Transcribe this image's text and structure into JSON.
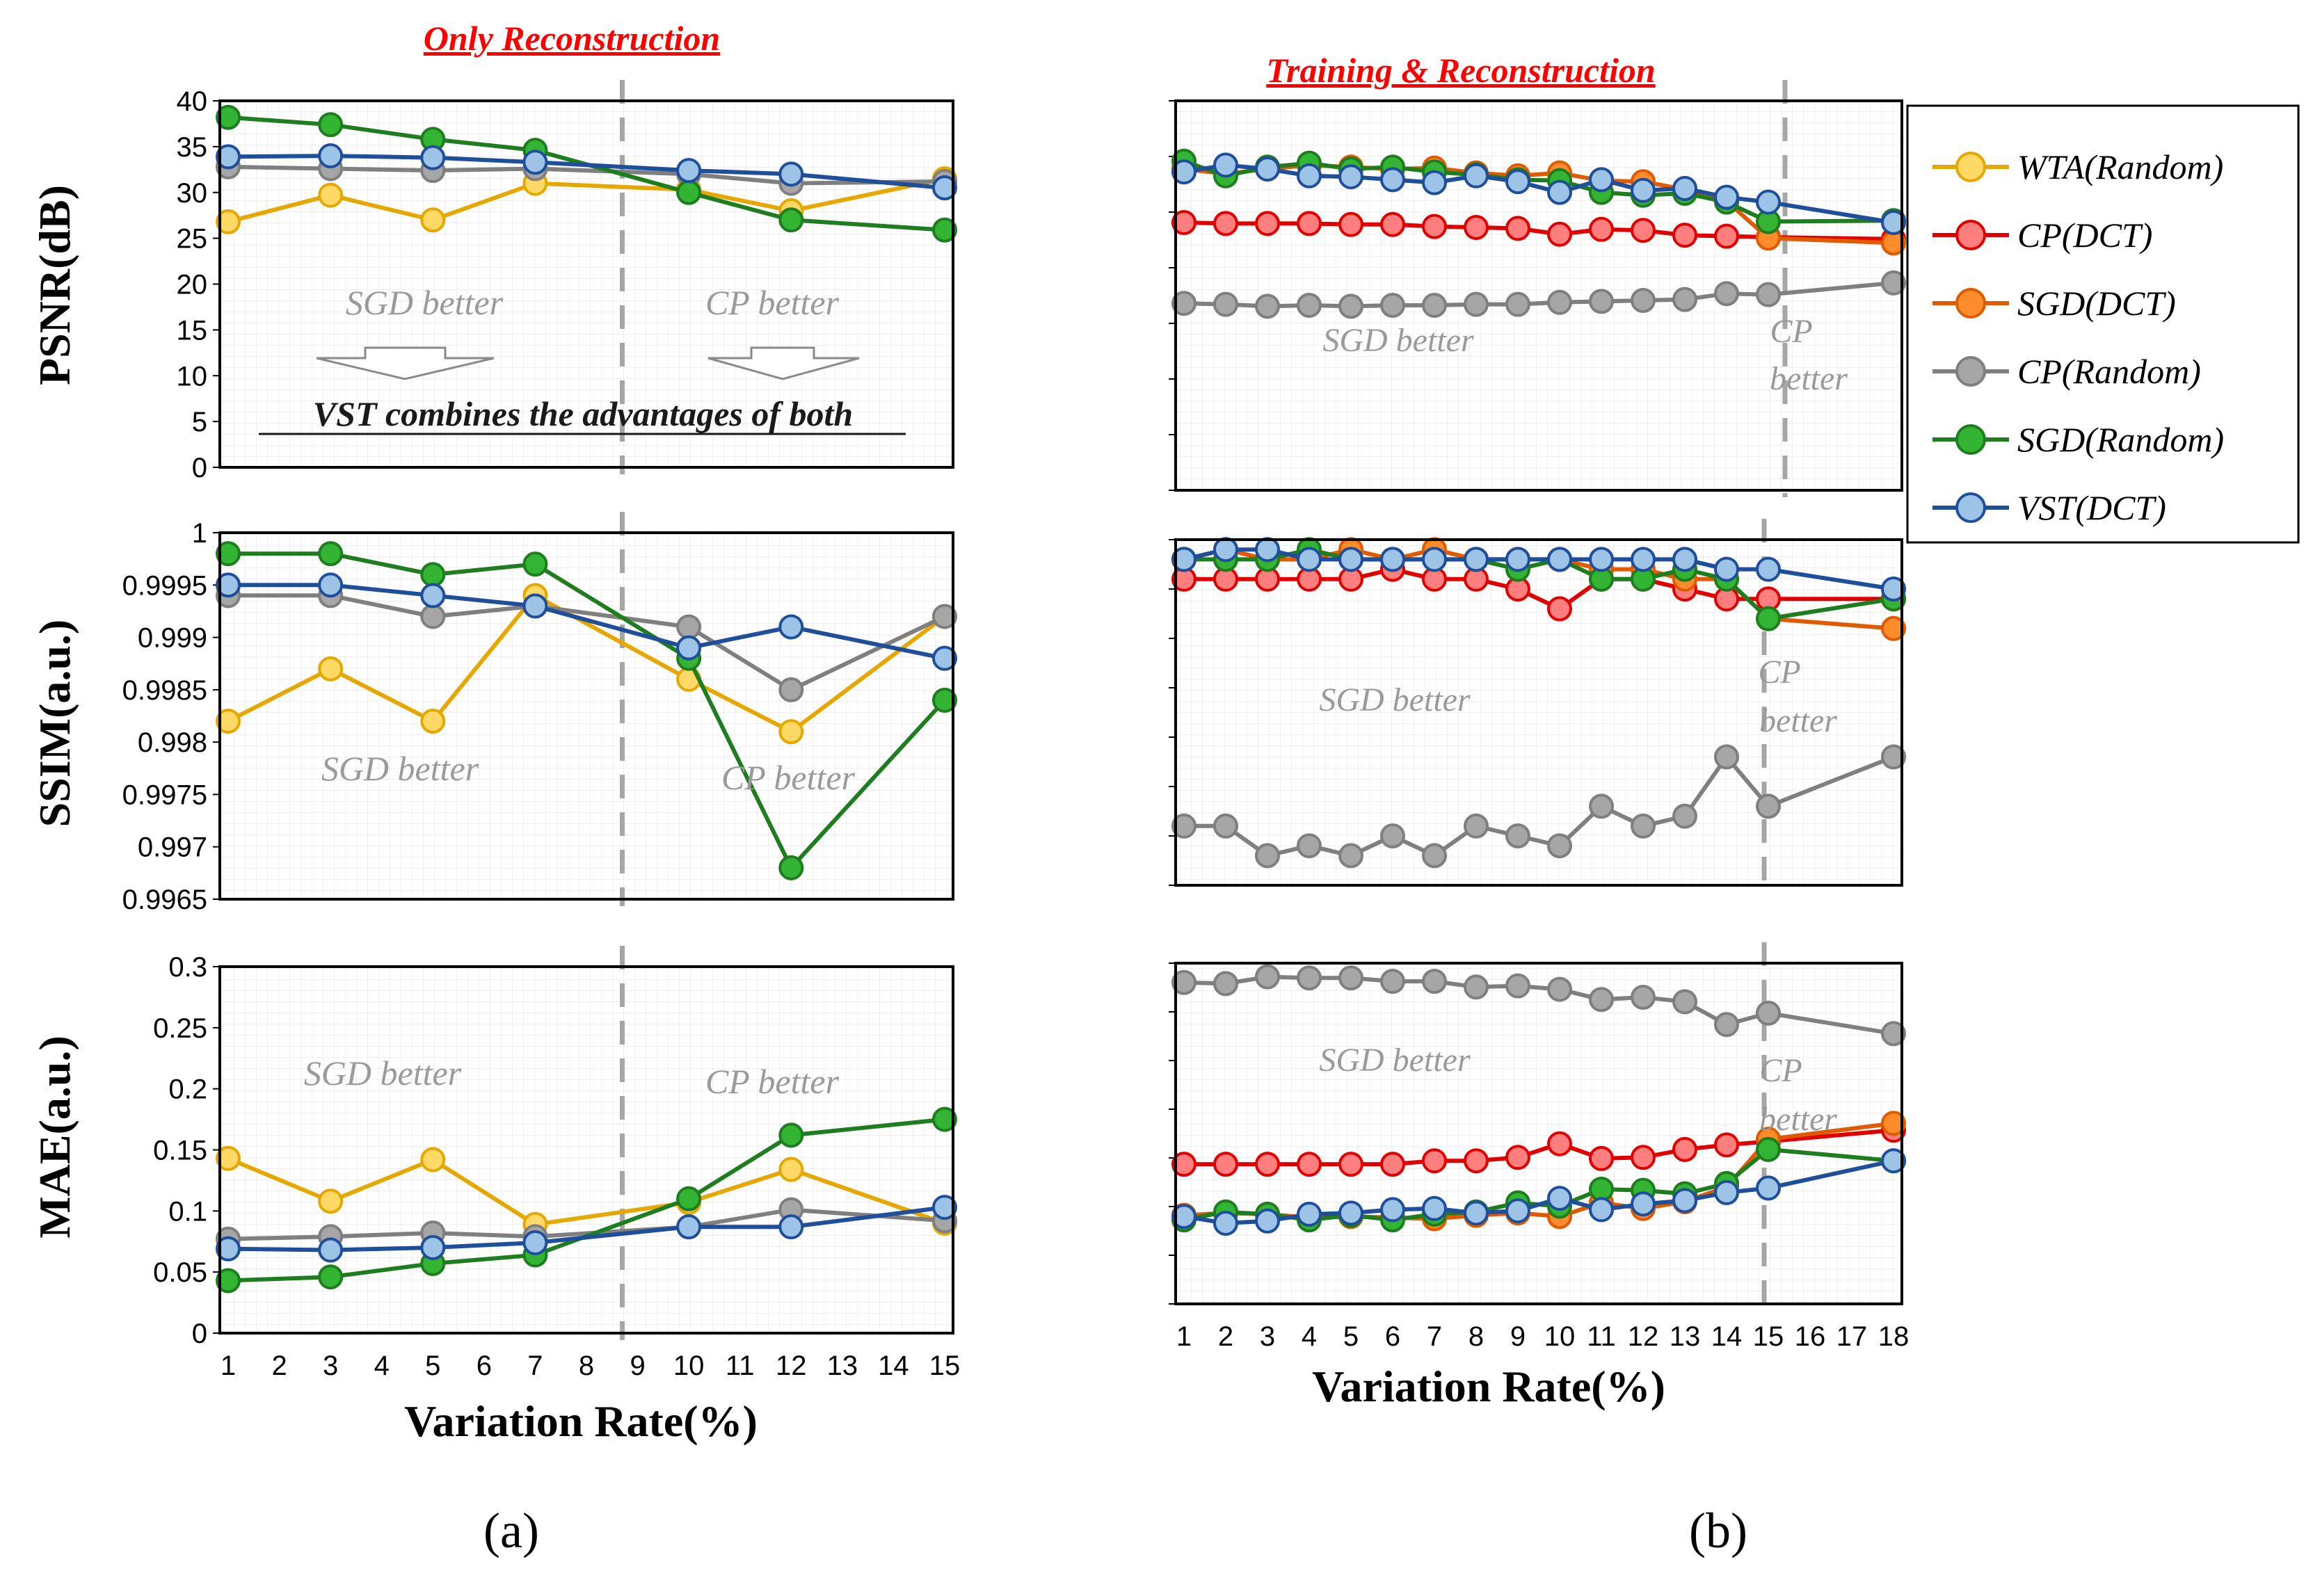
{
  "panel_labels": {
    "a": "(a)",
    "b": "(b)"
  },
  "panel_titles": {
    "a": "Only Reconstruction",
    "b": "Training & Reconstruction"
  },
  "annotations": {
    "sgd_better": "SGD better",
    "cp_better": "CP better",
    "cp": "CP",
    "better": "better",
    "combine": "VST combines the advantages of both"
  },
  "legend": [
    {
      "name": "WTA(Random)",
      "fill": "#ffd966",
      "stroke": "#e6a800"
    },
    {
      "name": "CP(DCT)",
      "fill": "#ff7f7f",
      "stroke": "#e00000"
    },
    {
      "name": "SGD(DCT)",
      "fill": "#ff8c2a",
      "stroke": "#e05a00"
    },
    {
      "name": "CP(Random)",
      "fill": "#a6a6a6",
      "stroke": "#7f7f7f"
    },
    {
      "name": "SGD(Random)",
      "fill": "#33b533",
      "stroke": "#1e7d1e"
    },
    {
      "name": "VST(DCT)",
      "fill": "#9dc3e6",
      "stroke": "#1f4e9a"
    }
  ],
  "chart_data": [
    {
      "id": "a-psnr",
      "type": "line",
      "ylabel": "PSNR(dB)",
      "xlabel": "",
      "categories": [
        "1",
        "3",
        "5",
        "7",
        "10",
        "12",
        "15"
      ],
      "ylim": [
        0,
        40
      ],
      "yticks": [
        "0",
        "5",
        "10",
        "15",
        "20",
        "25",
        "30",
        "35",
        "40"
      ],
      "series": [
        {
          "name": "WTA(Random)",
          "values": [
            26.8,
            29.7,
            27.0,
            31.0,
            30.3,
            28.0,
            31.5
          ]
        },
        {
          "name": "CP(Random)",
          "values": [
            32.8,
            32.6,
            32.4,
            32.6,
            32.0,
            31.0,
            31.2
          ]
        },
        {
          "name": "SGD(Random)",
          "values": [
            38.2,
            37.4,
            35.8,
            34.6,
            30.0,
            27.0,
            25.9
          ]
        },
        {
          "name": "VST(DCT)",
          "values": [
            33.9,
            34.0,
            33.8,
            33.3,
            32.4,
            32.0,
            30.5
          ]
        }
      ]
    },
    {
      "id": "a-ssim",
      "type": "line",
      "ylabel": "SSIM(a.u.)",
      "xlabel": "",
      "categories": [
        "1",
        "3",
        "5",
        "7",
        "10",
        "12",
        "15"
      ],
      "ylim": [
        0.9965,
        1
      ],
      "yticks": [
        "0.9965",
        "0.997",
        "0.9975",
        "0.998",
        "0.9985",
        "0.999",
        "0.9995",
        "1"
      ],
      "series": [
        {
          "name": "WTA(Random)",
          "values": [
            0.9982,
            0.9987,
            0.9982,
            0.9994,
            0.9986,
            0.9981,
            0.9992
          ]
        },
        {
          "name": "CP(Random)",
          "values": [
            0.9994,
            0.9994,
            0.9992,
            0.9993,
            0.9991,
            0.9985,
            0.9992
          ]
        },
        {
          "name": "SGD(Random)",
          "values": [
            0.9998,
            0.9998,
            0.9996,
            0.9997,
            0.9988,
            0.9968,
            0.9984
          ]
        },
        {
          "name": "VST(DCT)",
          "values": [
            0.9995,
            0.9995,
            0.9994,
            0.9993,
            0.9989,
            0.9991,
            0.9988
          ]
        }
      ]
    },
    {
      "id": "a-mae",
      "type": "line",
      "ylabel": "MAE(a.u.)",
      "xlabel": "Variation Rate(%)",
      "categories": [
        "1",
        "2",
        "3",
        "4",
        "5",
        "6",
        "7",
        "8",
        "9",
        "10",
        "11",
        "12",
        "13",
        "14",
        "15"
      ],
      "ylim": [
        0,
        0.3
      ],
      "yticks": [
        "0",
        "0.05",
        "0.1",
        "0.15",
        "0.2",
        "0.25",
        "0.3"
      ],
      "series": [
        {
          "name": "WTA(Random)",
          "x": [
            1,
            3,
            5,
            7,
            10,
            12,
            15
          ],
          "values": [
            0.143,
            0.108,
            0.142,
            0.089,
            0.107,
            0.134,
            0.09
          ]
        },
        {
          "name": "CP(Random)",
          "x": [
            1,
            3,
            5,
            7,
            10,
            12,
            15
          ],
          "values": [
            0.077,
            0.079,
            0.082,
            0.079,
            0.087,
            0.101,
            0.092
          ]
        },
        {
          "name": "SGD(Random)",
          "x": [
            1,
            3,
            5,
            7,
            10,
            12,
            15
          ],
          "values": [
            0.043,
            0.046,
            0.057,
            0.064,
            0.11,
            0.162,
            0.175
          ]
        },
        {
          "name": "VST(DCT)",
          "x": [
            1,
            3,
            5,
            7,
            10,
            12,
            15
          ],
          "values": [
            0.069,
            0.068,
            0.07,
            0.074,
            0.087,
            0.087,
            0.103
          ]
        }
      ]
    },
    {
      "id": "b-psnr",
      "type": "line",
      "ylabel": "",
      "xlabel": "",
      "categories": [
        "1",
        "2",
        "3",
        "4",
        "5",
        "6",
        "7",
        "8",
        "9",
        "10",
        "11",
        "12",
        "13",
        "14",
        "15",
        "16",
        "17",
        "18"
      ],
      "ylim": [
        0,
        40
      ],
      "series": [
        {
          "name": "CP(DCT)",
          "x": [
            1,
            2,
            3,
            4,
            5,
            6,
            7,
            8,
            9,
            10,
            11,
            12,
            13,
            14,
            15,
            18
          ],
          "values": [
            27.5,
            27.4,
            27.4,
            27.4,
            27.3,
            27.3,
            27.1,
            27.0,
            26.9,
            26.3,
            26.8,
            26.7,
            26.2,
            26.1,
            26.0,
            25.8
          ]
        },
        {
          "name": "SGD(DCT)",
          "x": [
            1,
            2,
            3,
            4,
            5,
            6,
            7,
            8,
            9,
            10,
            11,
            12,
            13,
            14,
            15,
            18
          ],
          "values": [
            33.0,
            32.5,
            33.0,
            33.4,
            33.2,
            33.0,
            33.1,
            32.6,
            32.3,
            32.6,
            31.8,
            31.7,
            30.9,
            29.7,
            25.9,
            25.4
          ]
        },
        {
          "name": "CP(Random)",
          "x": [
            1,
            2,
            3,
            4,
            5,
            6,
            7,
            8,
            9,
            10,
            11,
            12,
            13,
            14,
            15,
            18
          ],
          "values": [
            19.2,
            19.1,
            18.9,
            19.0,
            18.9,
            19.0,
            19.0,
            19.1,
            19.1,
            19.3,
            19.4,
            19.5,
            19.6,
            20.2,
            20.1,
            21.3
          ]
        },
        {
          "name": "SGD(Random)",
          "x": [
            1,
            2,
            3,
            4,
            5,
            6,
            7,
            8,
            9,
            10,
            11,
            12,
            13,
            14,
            15,
            18
          ],
          "values": [
            33.8,
            32.3,
            33.2,
            33.6,
            33.0,
            33.2,
            32.7,
            32.4,
            31.9,
            31.8,
            30.6,
            30.3,
            30.5,
            29.6,
            27.6,
            27.7
          ]
        },
        {
          "name": "VST(DCT)",
          "x": [
            1,
            2,
            3,
            4,
            5,
            6,
            7,
            8,
            9,
            10,
            11,
            12,
            13,
            14,
            15,
            18
          ],
          "values": [
            32.7,
            33.4,
            33.0,
            32.3,
            32.2,
            31.9,
            31.6,
            32.3,
            31.7,
            30.6,
            31.9,
            30.8,
            31.0,
            30.1,
            29.6,
            27.5
          ]
        }
      ]
    },
    {
      "id": "b-ssim",
      "type": "line",
      "ylabel": "",
      "xlabel": "",
      "categories": [
        "1",
        "2",
        "3",
        "4",
        "5",
        "6",
        "7",
        "8",
        "9",
        "10",
        "11",
        "12",
        "13",
        "14",
        "15",
        "16",
        "17",
        "18"
      ],
      "ylim": [
        0.9965,
        1
      ],
      "series": [
        {
          "name": "CP(DCT)",
          "x": [
            1,
            2,
            3,
            4,
            5,
            6,
            7,
            8,
            9,
            10,
            11,
            12,
            13,
            14,
            15,
            18
          ],
          "values": [
            0.9996,
            0.9996,
            0.9996,
            0.9996,
            0.9996,
            0.9997,
            0.9996,
            0.9996,
            0.9995,
            0.9993,
            0.9996,
            0.9996,
            0.9995,
            0.9994,
            0.9994,
            0.9994
          ]
        },
        {
          "name": "SGD(DCT)",
          "x": [
            1,
            2,
            3,
            4,
            5,
            6,
            7,
            8,
            9,
            10,
            11,
            12,
            13,
            14,
            15,
            18
          ],
          "values": [
            0.9998,
            0.9999,
            0.9998,
            0.9998,
            0.9999,
            0.9998,
            0.9999,
            0.9998,
            0.9998,
            0.9998,
            0.9997,
            0.9997,
            0.9996,
            0.9996,
            0.9992,
            0.9991
          ]
        },
        {
          "name": "CP(Random)",
          "x": [
            1,
            2,
            3,
            4,
            5,
            6,
            7,
            8,
            9,
            10,
            11,
            12,
            13,
            14,
            15,
            18
          ],
          "values": [
            0.9971,
            0.9971,
            0.9968,
            0.9969,
            0.9968,
            0.997,
            0.9968,
            0.9971,
            0.997,
            0.9969,
            0.9973,
            0.9971,
            0.9972,
            0.9978,
            0.9973,
            0.9978
          ]
        },
        {
          "name": "SGD(Random)",
          "x": [
            1,
            2,
            3,
            4,
            5,
            6,
            7,
            8,
            9,
            10,
            11,
            12,
            13,
            14,
            15,
            18
          ],
          "values": [
            0.9998,
            0.9998,
            0.9998,
            0.9999,
            0.9998,
            0.9998,
            0.9998,
            0.9998,
            0.9997,
            0.9998,
            0.9996,
            0.9996,
            0.9997,
            0.9996,
            0.9992,
            0.9994
          ]
        },
        {
          "name": "VST(DCT)",
          "x": [
            1,
            2,
            3,
            4,
            5,
            6,
            7,
            8,
            9,
            10,
            11,
            12,
            13,
            14,
            15,
            18
          ],
          "values": [
            0.9998,
            0.9999,
            0.9999,
            0.9998,
            0.9998,
            0.9998,
            0.9998,
            0.9998,
            0.9998,
            0.9998,
            0.9998,
            0.9998,
            0.9998,
            0.9997,
            0.9997,
            0.9995
          ]
        }
      ]
    },
    {
      "id": "b-mae",
      "type": "line",
      "ylabel": "",
      "xlabel": "Variation Rate(%)",
      "categories": [
        "1",
        "2",
        "3",
        "4",
        "5",
        "6",
        "7",
        "8",
        "9",
        "10",
        "11",
        "12",
        "13",
        "14",
        "15",
        "16",
        "17",
        "18"
      ],
      "ylim": [
        0,
        0.3
      ],
      "series": [
        {
          "name": "CP(DCT)",
          "x": [
            1,
            2,
            3,
            4,
            5,
            6,
            7,
            8,
            9,
            10,
            11,
            12,
            13,
            14,
            15,
            18
          ],
          "values": [
            0.123,
            0.123,
            0.123,
            0.123,
            0.123,
            0.123,
            0.126,
            0.126,
            0.129,
            0.141,
            0.128,
            0.129,
            0.136,
            0.14,
            0.143,
            0.153
          ]
        },
        {
          "name": "SGD(DCT)",
          "x": [
            1,
            2,
            3,
            4,
            5,
            6,
            7,
            8,
            9,
            10,
            11,
            12,
            13,
            14,
            15,
            18
          ],
          "values": [
            0.078,
            0.08,
            0.079,
            0.076,
            0.077,
            0.076,
            0.075,
            0.078,
            0.08,
            0.077,
            0.089,
            0.084,
            0.09,
            0.103,
            0.145,
            0.159
          ]
        },
        {
          "name": "CP(Random)",
          "x": [
            1,
            2,
            3,
            4,
            5,
            6,
            7,
            8,
            9,
            10,
            11,
            12,
            13,
            14,
            15,
            18
          ],
          "values": [
            0.283,
            0.282,
            0.288,
            0.287,
            0.287,
            0.284,
            0.284,
            0.279,
            0.28,
            0.277,
            0.268,
            0.27,
            0.266,
            0.246,
            0.256,
            0.238
          ]
        },
        {
          "name": "SGD(Random)",
          "x": [
            1,
            2,
            3,
            4,
            5,
            6,
            7,
            8,
            9,
            10,
            11,
            12,
            13,
            14,
            15,
            18
          ],
          "values": [
            0.074,
            0.081,
            0.079,
            0.074,
            0.078,
            0.074,
            0.079,
            0.081,
            0.089,
            0.086,
            0.101,
            0.1,
            0.097,
            0.106,
            0.136,
            0.126
          ]
        },
        {
          "name": "VST(DCT)",
          "x": [
            1,
            2,
            3,
            4,
            5,
            6,
            7,
            8,
            9,
            10,
            11,
            12,
            13,
            14,
            15,
            18
          ],
          "values": [
            0.077,
            0.071,
            0.073,
            0.079,
            0.08,
            0.083,
            0.084,
            0.08,
            0.082,
            0.093,
            0.083,
            0.088,
            0.091,
            0.098,
            0.102,
            0.126
          ]
        }
      ]
    }
  ]
}
